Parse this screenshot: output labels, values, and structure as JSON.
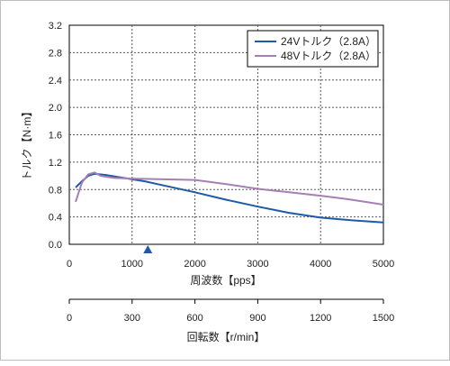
{
  "chart_data": {
    "type": "line",
    "xlabel": "周波数【pps】",
    "ylabel": "トルク【N·m】",
    "xlim": [
      0,
      5000
    ],
    "ylim": [
      0,
      3.2
    ],
    "x_ticks": [
      "0",
      "1000",
      "2000",
      "3000",
      "4000",
      "5000"
    ],
    "y_ticks": [
      "0.0",
      "0.4",
      "0.8",
      "1.2",
      "1.6",
      "2.0",
      "2.4",
      "2.8",
      "3.2"
    ],
    "grid": true,
    "legend_position": "top-right",
    "marker_x": 1250,
    "series": [
      {
        "name": "24Vトルク（2.8A）",
        "color": "#1f5aa6",
        "x": [
          100,
          200,
          300,
          400,
          600,
          800,
          1000,
          1200,
          1500,
          2000,
          2500,
          3000,
          3500,
          4000,
          4500,
          5000
        ],
        "y": [
          0.83,
          0.92,
          1.0,
          1.03,
          1.01,
          0.98,
          0.95,
          0.92,
          0.86,
          0.76,
          0.65,
          0.55,
          0.46,
          0.39,
          0.35,
          0.32
        ]
      },
      {
        "name": "48Vトルク（2.8A）",
        "color": "#a57fb5",
        "x": [
          100,
          200,
          300,
          400,
          500,
          700,
          1000,
          1500,
          2000,
          2500,
          3000,
          3500,
          4000,
          4500,
          5000
        ],
        "y": [
          0.62,
          0.9,
          1.02,
          1.05,
          1.0,
          0.97,
          0.96,
          0.95,
          0.94,
          0.88,
          0.81,
          0.76,
          0.71,
          0.65,
          0.58
        ]
      }
    ],
    "secondary_axis": {
      "label": "回転数【r/min】",
      "min": 0,
      "max": 1500,
      "ticks": [
        "0",
        "300",
        "600",
        "900",
        "1200",
        "1500"
      ]
    }
  }
}
